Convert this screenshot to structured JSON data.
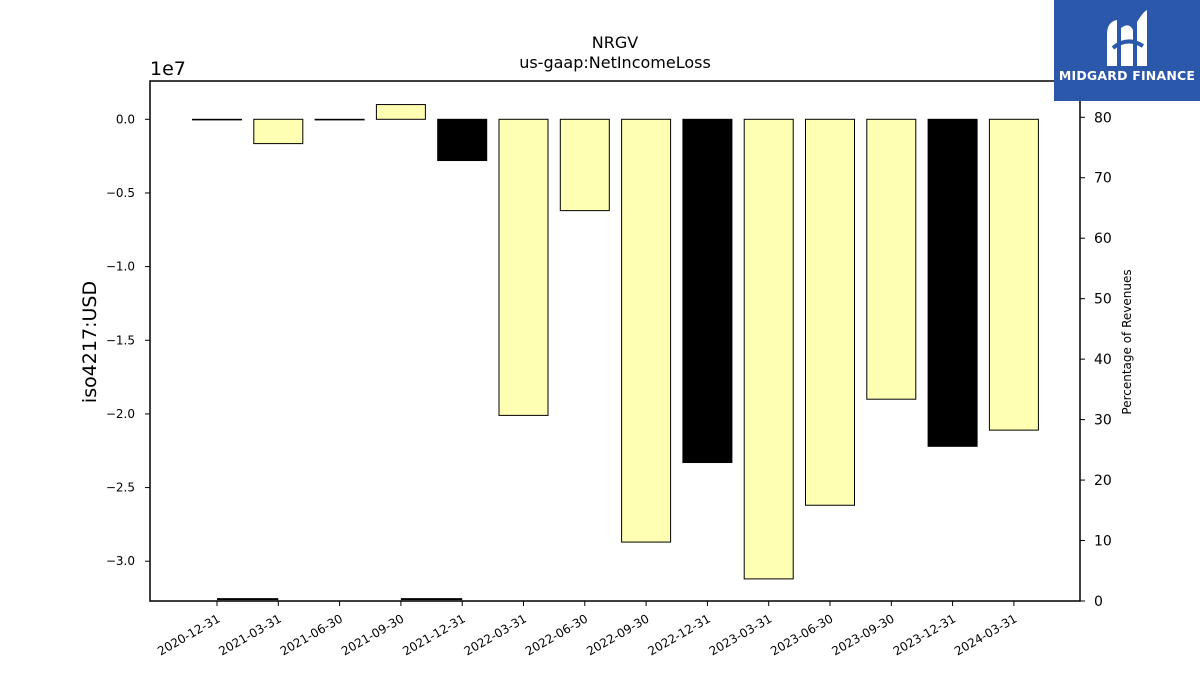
{
  "chart_data": {
    "type": "bar",
    "title": "NRGV",
    "subtitle": "us-gaap:NetIncomeLoss",
    "ylabel": "iso4217:USD",
    "y_exponent_label": "1e7",
    "y2label": "Percentage of Revenues",
    "ylim": [
      -3.27,
      0.26
    ],
    "y2lim": [
      0,
      86
    ],
    "yticks": [
      0.0,
      -0.5,
      -1.0,
      -1.5,
      -2.0,
      -2.5,
      -3.0
    ],
    "ytick_labels": [
      "0.0",
      "−0.5",
      "−1.0",
      "−1.5",
      "−2.0",
      "−2.5",
      "−3.0"
    ],
    "y2ticks": [
      0,
      10,
      20,
      30,
      40,
      50,
      60,
      70,
      80
    ],
    "grid": false,
    "categories": [
      "2020-12-31",
      "2021-03-31",
      "2021-06-30",
      "2021-09-30",
      "2021-12-31",
      "2022-03-31",
      "2022-06-30",
      "2022-09-30",
      "2022-12-31",
      "2023-03-31",
      "2023-06-30",
      "2023-09-30",
      "2023-12-31",
      "2024-03-31"
    ],
    "values": [
      -0.001,
      -0.165,
      -0.001,
      0.1,
      -0.28,
      -2.01,
      -0.62,
      -2.87,
      -2.33,
      -3.12,
      -2.62,
      -1.9,
      -2.22,
      -2.11
    ],
    "bar_colors": [
      "#ffffb3",
      "#ffffb3",
      "#ffffb3",
      "#ffffb3",
      "#000000",
      "#ffffb3",
      "#ffffb3",
      "#ffffb3",
      "#000000",
      "#ffffb3",
      "#ffffb3",
      "#ffffb3",
      "#000000",
      "#ffffb3"
    ],
    "percentage_series": {
      "name": "Percentage of Revenues",
      "segments": [
        {
          "x_range": [
            "2020-12-31",
            "2021-03-31"
          ],
          "value": 0.3
        },
        {
          "x_range": [
            "2021-09-30",
            "2021-12-31"
          ],
          "value": 0.3
        }
      ]
    }
  },
  "logo": {
    "text": "MIDGARD FINANCE",
    "bg_color": "#2b58aa"
  }
}
